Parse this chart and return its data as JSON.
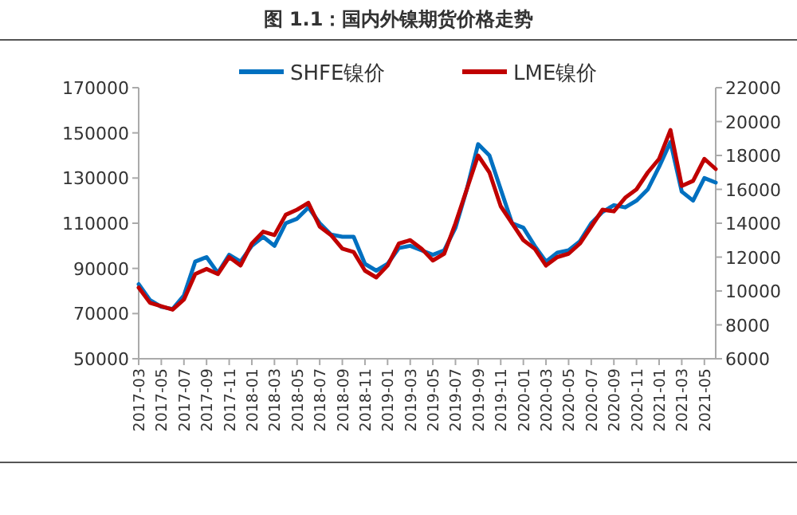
{
  "chart_data": {
    "type": "line",
    "title": "图 1.1：国内外镍期货价格走势",
    "x": [
      "2017-03",
      "2017-04",
      "2017-05",
      "2017-06",
      "2017-07",
      "2017-08",
      "2017-09",
      "2017-10",
      "2017-11",
      "2017-12",
      "2018-01",
      "2018-02",
      "2018-03",
      "2018-04",
      "2018-05",
      "2018-06",
      "2018-07",
      "2018-08",
      "2018-09",
      "2018-10",
      "2018-11",
      "2018-12",
      "2019-01",
      "2019-02",
      "2019-03",
      "2019-04",
      "2019-05",
      "2019-06",
      "2019-07",
      "2019-08",
      "2019-09",
      "2019-10",
      "2019-11",
      "2019-12",
      "2020-01",
      "2020-02",
      "2020-03",
      "2020-04",
      "2020-05",
      "2020-06",
      "2020-07",
      "2020-08",
      "2020-09",
      "2020-10",
      "2020-11",
      "2020-12",
      "2021-01",
      "2021-02",
      "2021-03",
      "2021-04",
      "2021-05",
      "2021-06"
    ],
    "series": [
      {
        "name": "SHFE镍价",
        "color": "#0070c0",
        "values": [
          83000,
          76000,
          73000,
          72000,
          78000,
          93000,
          95000,
          88000,
          96000,
          93000,
          100000,
          104000,
          100000,
          110000,
          112000,
          117000,
          110000,
          105000,
          104000,
          104000,
          92000,
          89000,
          92000,
          99000,
          100000,
          98000,
          96000,
          98000,
          108000,
          125000,
          145000,
          140000,
          125000,
          110000,
          108000,
          100000,
          93000,
          97000,
          98000,
          102000,
          110000,
          115000,
          118000,
          117000,
          120000,
          125000,
          135000,
          146000,
          124000,
          120000,
          130000,
          128000
        ]
      },
      {
        "name": "LME镍价",
        "color": "#c00000",
        "axis": "y2",
        "values": [
          10200,
          9300,
          9100,
          8900,
          9500,
          11000,
          11300,
          11000,
          12000,
          11500,
          12800,
          13500,
          13300,
          14500,
          14800,
          15200,
          13800,
          13300,
          12500,
          12300,
          11200,
          10800,
          11500,
          12800,
          13000,
          12500,
          11800,
          12200,
          14000,
          16000,
          18000,
          17000,
          15000,
          14000,
          13000,
          12500,
          11500,
          12000,
          12200,
          12800,
          13800,
          14800,
          14700,
          15500,
          16000,
          17000,
          17800,
          19500,
          16200,
          16500,
          17800,
          17200
        ]
      }
    ],
    "xlim": [
      "2017-03",
      "2021-06"
    ],
    "xticks": [
      "2017-03",
      "2017-05",
      "2017-07",
      "2017-09",
      "2017-11",
      "2018-01",
      "2018-03",
      "2018-05",
      "2018-07",
      "2018-09",
      "2018-11",
      "2019-01",
      "2019-03",
      "2019-05",
      "2019-07",
      "2019-09",
      "2019-11",
      "2020-01",
      "2020-03",
      "2020-05",
      "2020-07",
      "2020-09",
      "2020-11",
      "2021-01",
      "2021-03",
      "2021-05"
    ],
    "ylim": [
      50000,
      170000
    ],
    "yticks": [
      50000,
      70000,
      90000,
      110000,
      130000,
      150000,
      170000
    ],
    "y2lim": [
      6000,
      22000
    ],
    "y2ticks": [
      6000,
      8000,
      10000,
      12000,
      14000,
      16000,
      18000,
      20000,
      22000
    ],
    "legend": "top",
    "marker": "none",
    "line_style": "solid"
  }
}
